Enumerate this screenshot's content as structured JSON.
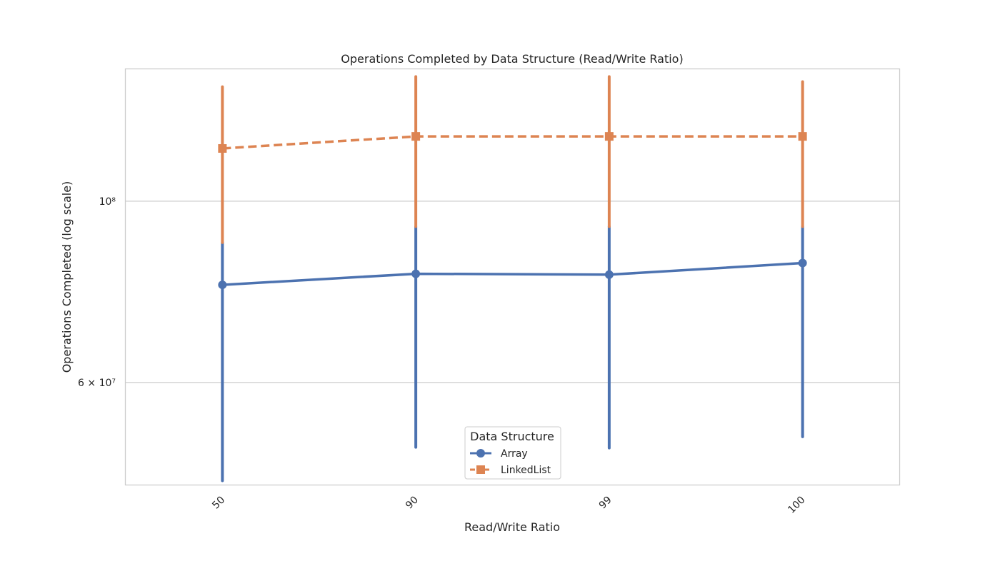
{
  "chart_data": {
    "type": "line",
    "title": "Operations Completed by Data Structure (Read/Write Ratio)",
    "xlabel": "Read/Write Ratio",
    "ylabel": "Operations Completed (log scale)",
    "yscale": "log",
    "ylim": [
      45000000,
      145000000
    ],
    "categories": [
      "50",
      "90",
      "99",
      "100"
    ],
    "ytick_values": [
      60000000,
      100000000
    ],
    "ytick_labels": [
      "6 × 10⁷",
      "10⁸"
    ],
    "grid": "horizontal",
    "legend_title": "Data Structure",
    "legend_position": "bottom-center",
    "series": [
      {
        "name": "Array",
        "color": "#4c72b0",
        "marker": "circle",
        "linestyle": "solid",
        "values": [
          79000000,
          81500000,
          81300000,
          84000000
        ],
        "ci_low": [
          45500000,
          50000000,
          49900000,
          51500000
        ],
        "ci_high": [
          89000000,
          93000000,
          93100000,
          93200000
        ]
      },
      {
        "name": "LinkedList",
        "color": "#dd8452",
        "marker": "square",
        "linestyle": "dashed",
        "values": [
          116000000,
          120000000,
          120000000,
          120000000
        ],
        "ci_low": [
          89000000,
          93100000,
          93100000,
          93100000
        ],
        "ci_high": [
          138000000,
          142000000,
          142000000,
          140000000
        ]
      }
    ]
  }
}
